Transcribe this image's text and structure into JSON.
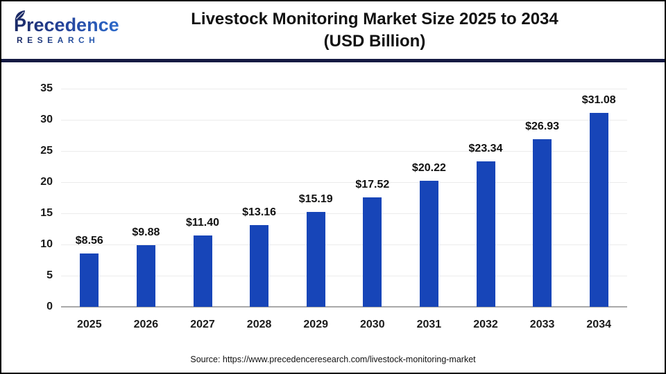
{
  "header": {
    "logo_line1": "Precedence",
    "logo_line2": "RESEARCH",
    "title_line1": "Livestock Monitoring Market Size 2025 to 2034",
    "title_line2": "(USD Billion)"
  },
  "footer": {
    "source": "Source: https://www.precedenceresearch.com/livestock-monitoring-market"
  },
  "colors": {
    "bar": "#1745b8",
    "separator": "#151a42",
    "gridline": "#ebebeb",
    "axis_line": "#a9a9a9",
    "logo_dark": "#1b2a66",
    "logo_light": "#2e6fd0",
    "title_text": "#111111"
  },
  "chart_data": {
    "type": "bar",
    "title": "Livestock Monitoring Market Size 2025 to 2034 (USD Billion)",
    "categories": [
      "2025",
      "2026",
      "2027",
      "2028",
      "2029",
      "2030",
      "2031",
      "2032",
      "2033",
      "2034"
    ],
    "values": [
      8.56,
      9.88,
      11.4,
      13.16,
      15.19,
      17.52,
      20.22,
      23.34,
      26.93,
      31.08
    ],
    "value_labels": [
      "$8.56",
      "$9.88",
      "$11.40",
      "$13.16",
      "$15.19",
      "$17.52",
      "$20.22",
      "$23.34",
      "$26.93",
      "$31.08"
    ],
    "xlabel": "",
    "ylabel": "",
    "ylim": [
      0,
      35
    ],
    "yticks": [
      0,
      5,
      10,
      15,
      20,
      25,
      30,
      35
    ],
    "grid": "horizontal",
    "legend": "none"
  }
}
